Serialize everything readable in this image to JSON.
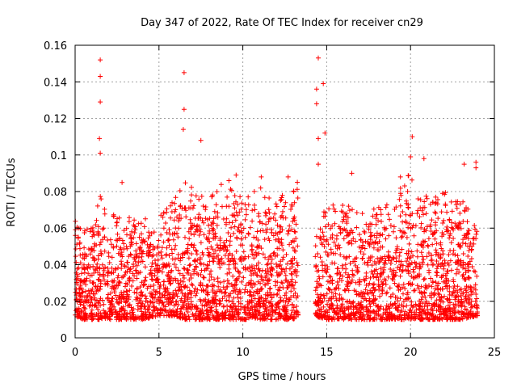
{
  "chart_data": {
    "type": "scatter",
    "title": "Day 347 of 2022, Rate Of TEC Index for receiver cn29",
    "xlabel": "GPS time / hours",
    "ylabel": "ROTI / TECUs",
    "xlim": [
      0,
      25
    ],
    "ylim": [
      0,
      0.16
    ],
    "xticks": [
      "0",
      "5",
      "10",
      "15",
      "20",
      "25"
    ],
    "yticks": [
      "0",
      "0.02",
      "0.04",
      "0.06",
      "0.08",
      "0.1",
      "0.12",
      "0.14",
      "0.16"
    ],
    "grid": true,
    "marker": "+",
    "color": "#ff0000",
    "data_gap_hours": [
      13.3,
      14.3
    ],
    "outliers": [
      {
        "x": 1.5,
        "y": 0.152
      },
      {
        "x": 1.5,
        "y": 0.143
      },
      {
        "x": 1.5,
        "y": 0.129
      },
      {
        "x": 1.45,
        "y": 0.109
      },
      {
        "x": 1.5,
        "y": 0.101
      },
      {
        "x": 6.5,
        "y": 0.145
      },
      {
        "x": 6.5,
        "y": 0.125
      },
      {
        "x": 6.45,
        "y": 0.114
      },
      {
        "x": 7.5,
        "y": 0.108
      },
      {
        "x": 14.5,
        "y": 0.153
      },
      {
        "x": 14.8,
        "y": 0.139
      },
      {
        "x": 14.4,
        "y": 0.136
      },
      {
        "x": 14.4,
        "y": 0.128
      },
      {
        "x": 14.9,
        "y": 0.112
      },
      {
        "x": 14.5,
        "y": 0.109
      },
      {
        "x": 14.5,
        "y": 0.095
      },
      {
        "x": 20.1,
        "y": 0.11
      },
      {
        "x": 20.0,
        "y": 0.099
      },
      {
        "x": 20.8,
        "y": 0.098
      },
      {
        "x": 23.9,
        "y": 0.096
      },
      {
        "x": 23.9,
        "y": 0.093
      },
      {
        "x": 16.5,
        "y": 0.09
      },
      {
        "x": 23.2,
        "y": 0.095
      },
      {
        "x": 9.6,
        "y": 0.089
      },
      {
        "x": 11.1,
        "y": 0.088
      },
      {
        "x": 12.7,
        "y": 0.088
      },
      {
        "x": 2.8,
        "y": 0.085
      },
      {
        "x": 19.4,
        "y": 0.088
      }
    ],
    "dense_profile": {
      "description_points_x": [
        0,
        0.5,
        1,
        1.5,
        2,
        3,
        4,
        5,
        6,
        6.5,
        7,
        8,
        9,
        10,
        11,
        12,
        13,
        13.3,
        14.3,
        15,
        16,
        17,
        18,
        19,
        20,
        21,
        22,
        23,
        24
      ],
      "band_low": [
        0.012,
        0.01,
        0.01,
        0.01,
        0.01,
        0.01,
        0.01,
        0.012,
        0.012,
        0.01,
        0.01,
        0.01,
        0.01,
        0.01,
        0.01,
        0.01,
        0.01,
        0.012,
        0.012,
        0.01,
        0.01,
        0.01,
        0.01,
        0.01,
        0.01,
        0.01,
        0.01,
        0.01,
        0.012
      ],
      "band_high": [
        0.058,
        0.06,
        0.055,
        0.08,
        0.06,
        0.065,
        0.06,
        0.06,
        0.07,
        0.08,
        0.075,
        0.07,
        0.08,
        0.07,
        0.075,
        0.07,
        0.08,
        0.08,
        0.06,
        0.065,
        0.07,
        0.065,
        0.065,
        0.07,
        0.085,
        0.075,
        0.075,
        0.07,
        0.062
      ]
    }
  }
}
